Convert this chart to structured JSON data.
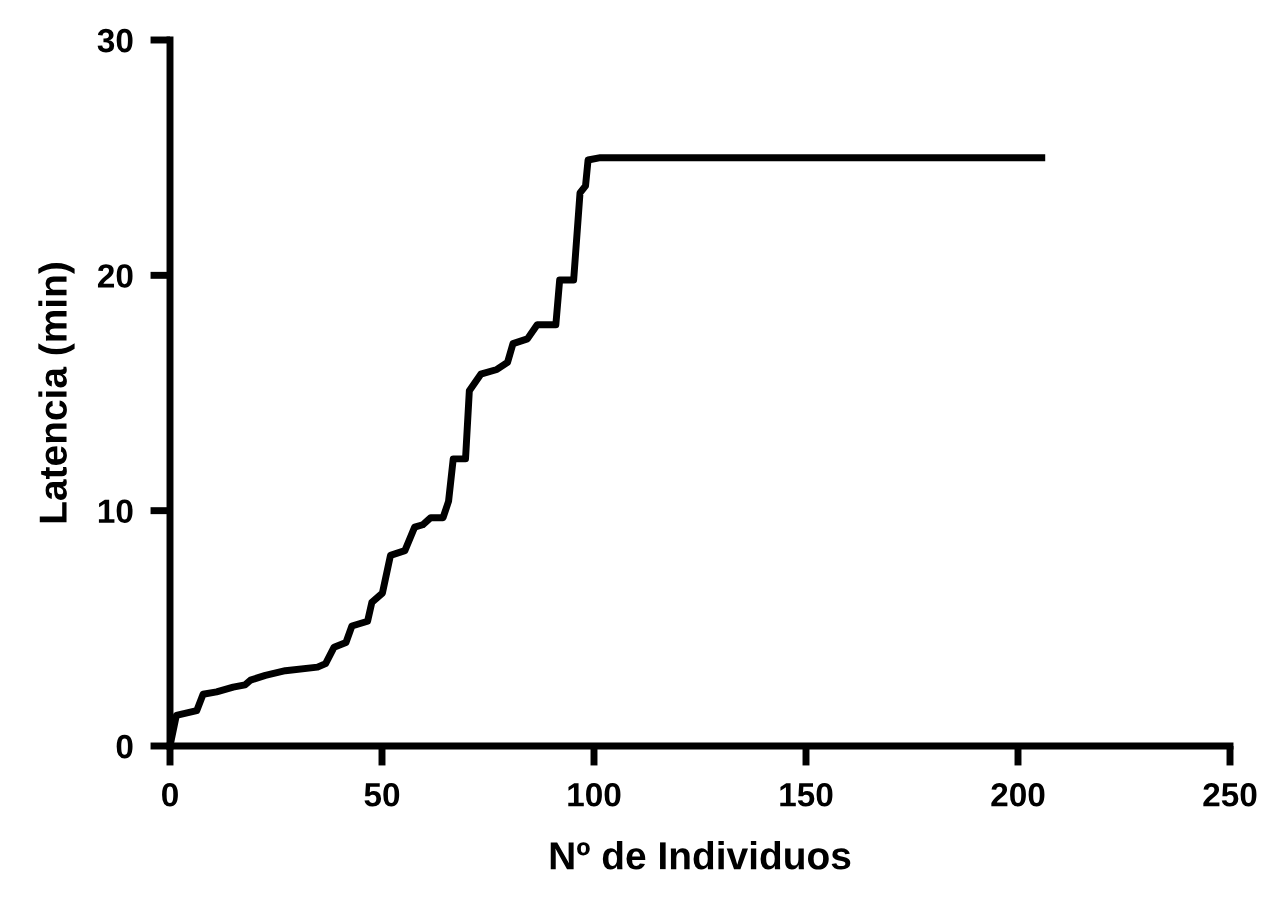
{
  "chart_data": {
    "type": "line",
    "xlabel": "Nº de Individuos",
    "ylabel": "Latencia (min)",
    "xlim": [
      0,
      250
    ],
    "xticks": [
      0,
      50,
      100,
      150,
      200,
      250
    ],
    "ylim": [
      0,
      30
    ],
    "yticks": [
      0,
      10,
      20,
      30
    ],
    "grid": false,
    "marker": "none",
    "line_style": "solid",
    "series": [
      {
        "color": "#000000",
        "x": [
          0,
          1.5,
          6.3,
          7.8,
          11,
          14.9,
          17.7,
          19,
          22.5,
          27.2,
          34.8,
          36.7,
          38.7,
          41.5,
          42.9,
          46.6,
          47.6,
          50.1,
          52,
          55.4,
          57.7,
          59.6,
          61.5,
          64.4,
          65.7,
          66.8,
          69.7,
          70.6,
          73.3,
          77.1,
          79.6,
          80.9,
          84.3,
          86.6,
          91,
          91.9,
          95.2,
          96.7,
          98,
          98.6,
          101.5,
          205.6
        ],
        "values": [
          0,
          1.3,
          1.5,
          2.2,
          2.3,
          2.5,
          2.6,
          2.8,
          3.0,
          3.2,
          3.35,
          3.5,
          4.2,
          4.4,
          5.1,
          5.3,
          6.1,
          6.5,
          8.1,
          8.3,
          9.3,
          9.4,
          9.7,
          9.7,
          10.4,
          12.2,
          12.2,
          15.1,
          15.8,
          16.0,
          16.3,
          17.1,
          17.3,
          17.9,
          17.9,
          19.8,
          19.8,
          23.5,
          23.8,
          24.9,
          25.0,
          25.0
        ]
      }
    ]
  }
}
